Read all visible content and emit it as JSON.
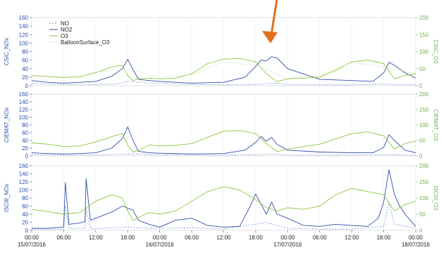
{
  "chart_data": {
    "type": "line",
    "x_ticks": [
      "00:00",
      "06:00",
      "12:00",
      "18:00",
      "00:00",
      "06:00",
      "12:00",
      "18:00",
      "00:00",
      "06:00",
      "12:00",
      "18:00",
      "00:00"
    ],
    "date_ticks": [
      "15/07/2016",
      "16/07/2016",
      "17/07/2016",
      "18/07/2016"
    ],
    "x_range_hours": [
      0,
      72
    ],
    "legend": [
      "NO",
      "NO2",
      "O3",
      "BalloonSurface_O3"
    ],
    "colors": {
      "NO": "#6d8fd6",
      "NO2": "#2b4fa8",
      "O3": "#8cc63f",
      "BalloonSurface_O3": "#c4dea8",
      "left_axis": "#2b4fa8",
      "right_axis": "#6ab04c",
      "arrow": "#e07020"
    },
    "panels": [
      {
        "ylabel_left": "CSIC_NOx",
        "ylabel_right": "CSIC_O3",
        "left_ticks": [
          "0",
          "20",
          "40",
          "60",
          "80",
          "100",
          "120",
          "140",
          "160"
        ],
        "right_ticks": [
          "0",
          "50",
          "100",
          "150",
          "200"
        ],
        "ylim_left": [
          0,
          160
        ],
        "ylim_right": [
          0,
          200
        ],
        "series": [
          {
            "name": "NO",
            "x": [
              0,
              6,
              12,
              16,
              18,
              22,
              30,
              36,
              42,
              46,
              48,
              54,
              60,
              66,
              68,
              72
            ],
            "y": [
              5,
              3,
              3,
              4,
              10,
              6,
              3,
              2,
              3,
              6,
              3,
              2,
              2,
              4,
              3,
              2
            ]
          },
          {
            "name": "NO2",
            "x": [
              0,
              3,
              6,
              9,
              12,
              15,
              17,
              18,
              19,
              20,
              22,
              24,
              30,
              36,
              40,
              42,
              43,
              44,
              45,
              46,
              48,
              54,
              60,
              64,
              66,
              67,
              68,
              70,
              72
            ],
            "y": [
              12,
              8,
              6,
              8,
              10,
              22,
              40,
              62,
              38,
              15,
              12,
              10,
              6,
              8,
              20,
              45,
              60,
              58,
              68,
              65,
              40,
              15,
              12,
              10,
              30,
              55,
              48,
              30,
              18
            ]
          },
          {
            "name": "O3",
            "x": [
              0,
              3,
              6,
              9,
              12,
              15,
              17,
              18,
              19,
              20,
              22,
              24,
              27,
              30,
              33,
              36,
              39,
              42,
              44,
              46,
              48,
              51,
              54,
              57,
              60,
              63,
              66,
              68,
              70,
              72
            ],
            "y": [
              30,
              27,
              24,
              26,
              38,
              55,
              60,
              30,
              15,
              20,
              22,
              20,
              22,
              35,
              65,
              78,
              80,
              70,
              35,
              12,
              20,
              22,
              25,
              45,
              70,
              75,
              65,
              20,
              30,
              35
            ]
          },
          {
            "name": "BalloonSurface_O3",
            "x": [
              0,
              6,
              12,
              18,
              24,
              30,
              36,
              42,
              48,
              54,
              60,
              66,
              72
            ],
            "y": [
              30,
              26,
              40,
              50,
              24,
              32,
              70,
              60,
              22,
              30,
              68,
              55,
              36
            ]
          }
        ]
      },
      {
        "ylabel_left": "CIEMAT_NOx",
        "ylabel_right": "CIEMAT_O3",
        "left_ticks": [
          "0",
          "20",
          "40",
          "60",
          "80",
          "100",
          "120",
          "140",
          "160"
        ],
        "right_ticks": [
          "0",
          "50",
          "100",
          "150",
          "200"
        ],
        "ylim_left": [
          0,
          160
        ],
        "ylim_right": [
          0,
          200
        ],
        "series": [
          {
            "name": "NO",
            "x": [
              0,
              6,
              12,
              18,
              24,
              30,
              36,
              42,
              46,
              48,
              54,
              60,
              66,
              72
            ],
            "y": [
              3,
              2,
              2,
              5,
              3,
              2,
              2,
              3,
              5,
              2,
              2,
              2,
              3,
              2
            ]
          },
          {
            "name": "NO2",
            "x": [
              0,
              3,
              6,
              9,
              12,
              15,
              17,
              18,
              19,
              20,
              22,
              24,
              30,
              36,
              40,
              42,
              43,
              44,
              45,
              46,
              48,
              54,
              60,
              64,
              66,
              67,
              68,
              70,
              72
            ],
            "y": [
              8,
              6,
              5,
              6,
              8,
              20,
              45,
              75,
              40,
              12,
              8,
              7,
              5,
              6,
              15,
              35,
              50,
              38,
              48,
              30,
              15,
              10,
              8,
              8,
              22,
              55,
              40,
              15,
              8
            ]
          },
          {
            "name": "O3",
            "x": [
              0,
              3,
              6,
              9,
              12,
              15,
              17,
              18,
              19,
              20,
              22,
              24,
              27,
              30,
              33,
              36,
              39,
              42,
              44,
              46,
              48,
              51,
              54,
              57,
              60,
              63,
              66,
              68,
              70,
              72
            ],
            "y": [
              42,
              38,
              30,
              32,
              45,
              62,
              72,
              35,
              12,
              18,
              35,
              32,
              34,
              40,
              60,
              80,
              82,
              72,
              40,
              14,
              22,
              30,
              38,
              55,
              72,
              78,
              65,
              22,
              40,
              48
            ]
          }
        ]
      },
      {
        "ylabel_left": "ISCIII_NOx",
        "ylabel_right": "ISCIII_O3",
        "left_ticks": [
          "0",
          "20",
          "40",
          "60",
          "80",
          "100",
          "120",
          "140",
          "160"
        ],
        "right_ticks": [
          "0",
          "50",
          "100",
          "150",
          "200"
        ],
        "ylim_left": [
          0,
          160
        ],
        "ylim_right": [
          0,
          200
        ],
        "series": [
          {
            "name": "NO",
            "x": [
              0,
              6,
              6.3,
              7,
              10,
              10.2,
              11,
              12,
              18,
              22,
              30,
              36,
              42,
              44,
              46,
              48,
              54,
              60,
              66,
              67,
              68,
              72
            ],
            "y": [
              3,
              3,
              60,
              5,
              5,
              55,
              5,
              4,
              8,
              5,
              6,
              3,
              15,
              20,
              12,
              5,
              3,
              3,
              10,
              70,
              15,
              5
            ]
          },
          {
            "name": "NO2",
            "x": [
              0,
              3,
              6,
              6.3,
              7,
              9,
              10,
              10.2,
              11,
              12,
              15,
              17,
              18,
              19,
              20,
              22,
              24,
              27,
              30,
              33,
              36,
              39,
              41,
              42,
              43,
              44,
              45,
              46,
              48,
              51,
              54,
              57,
              60,
              63,
              65,
              66,
              67,
              68,
              69,
              70,
              72
            ],
            "y": [
              5,
              5,
              8,
              118,
              15,
              18,
              22,
              128,
              25,
              30,
              45,
              60,
              55,
              50,
              25,
              15,
              8,
              25,
              30,
              12,
              8,
              10,
              60,
              90,
              65,
              40,
              70,
              40,
              30,
              12,
              10,
              15,
              12,
              10,
              30,
              70,
              150,
              90,
              60,
              40,
              10
            ]
          },
          {
            "name": "O3",
            "x": [
              0,
              3,
              6,
              9,
              12,
              15,
              17,
              18,
              19,
              20,
              22,
              24,
              27,
              30,
              33,
              36,
              39,
              42,
              44,
              46,
              48,
              51,
              54,
              57,
              60,
              63,
              66,
              68,
              70,
              72
            ],
            "y": [
              65,
              58,
              50,
              55,
              90,
              110,
              100,
              60,
              30,
              40,
              55,
              50,
              60,
              90,
              120,
              135,
              125,
              95,
              70,
              60,
              70,
              65,
              75,
              110,
              130,
              120,
              110,
              60,
              80,
              90
            ]
          }
        ]
      }
    ]
  }
}
